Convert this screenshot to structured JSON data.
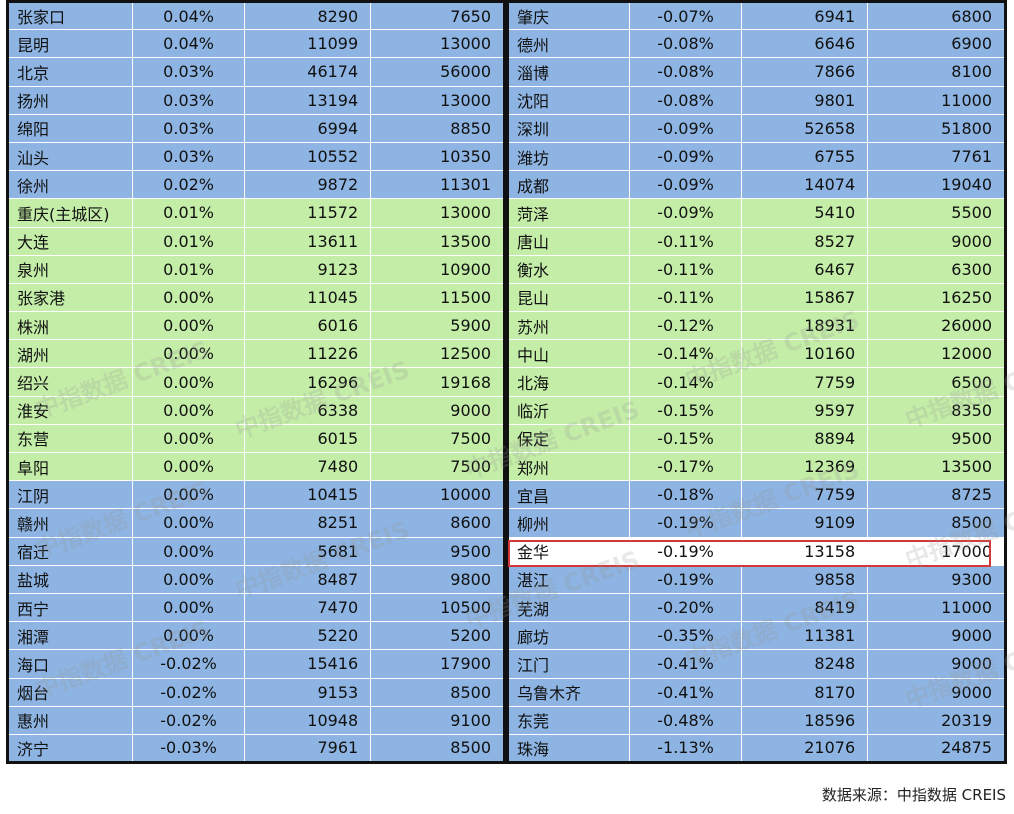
{
  "colors": {
    "blue_row": "#8db4e2",
    "green_row": "#c4eea8",
    "highlight_border": "#d23a3a"
  },
  "left_rows": [
    {
      "city": "张家口",
      "change": "0.04%",
      "value_a": "8290",
      "value_b": "7650",
      "color": "blue"
    },
    {
      "city": "昆明",
      "change": "0.04%",
      "value_a": "11099",
      "value_b": "13000",
      "color": "blue"
    },
    {
      "city": "北京",
      "change": "0.03%",
      "value_a": "46174",
      "value_b": "56000",
      "color": "blue"
    },
    {
      "city": "扬州",
      "change": "0.03%",
      "value_a": "13194",
      "value_b": "13000",
      "color": "blue"
    },
    {
      "city": "绵阳",
      "change": "0.03%",
      "value_a": "6994",
      "value_b": "8850",
      "color": "blue"
    },
    {
      "city": "汕头",
      "change": "0.03%",
      "value_a": "10552",
      "value_b": "10350",
      "color": "blue"
    },
    {
      "city": "徐州",
      "change": "0.02%",
      "value_a": "9872",
      "value_b": "11301",
      "color": "blue"
    },
    {
      "city": "重庆(主城区)",
      "change": "0.01%",
      "value_a": "11572",
      "value_b": "13000",
      "color": "green"
    },
    {
      "city": "大连",
      "change": "0.01%",
      "value_a": "13611",
      "value_b": "13500",
      "color": "green"
    },
    {
      "city": "泉州",
      "change": "0.01%",
      "value_a": "9123",
      "value_b": "10900",
      "color": "green"
    },
    {
      "city": "张家港",
      "change": "0.00%",
      "value_a": "11045",
      "value_b": "11500",
      "color": "green"
    },
    {
      "city": "株洲",
      "change": "0.00%",
      "value_a": "6016",
      "value_b": "5900",
      "color": "green"
    },
    {
      "city": "湖州",
      "change": "0.00%",
      "value_a": "11226",
      "value_b": "12500",
      "color": "green"
    },
    {
      "city": "绍兴",
      "change": "0.00%",
      "value_a": "16296",
      "value_b": "19168",
      "color": "green"
    },
    {
      "city": "淮安",
      "change": "0.00%",
      "value_a": "6338",
      "value_b": "9000",
      "color": "green"
    },
    {
      "city": "东营",
      "change": "0.00%",
      "value_a": "6015",
      "value_b": "7500",
      "color": "green"
    },
    {
      "city": "阜阳",
      "change": "0.00%",
      "value_a": "7480",
      "value_b": "7500",
      "color": "green"
    },
    {
      "city": "江阴",
      "change": "0.00%",
      "value_a": "10415",
      "value_b": "10000",
      "color": "blue"
    },
    {
      "city": "赣州",
      "change": "0.00%",
      "value_a": "8251",
      "value_b": "8600",
      "color": "blue"
    },
    {
      "city": "宿迁",
      "change": "0.00%",
      "value_a": "5681",
      "value_b": "9500",
      "color": "blue"
    },
    {
      "city": "盐城",
      "change": "0.00%",
      "value_a": "8487",
      "value_b": "9800",
      "color": "blue"
    },
    {
      "city": "西宁",
      "change": "0.00%",
      "value_a": "7470",
      "value_b": "10500",
      "color": "blue"
    },
    {
      "city": "湘潭",
      "change": "0.00%",
      "value_a": "5220",
      "value_b": "5200",
      "color": "blue"
    },
    {
      "city": "海口",
      "change": "-0.02%",
      "value_a": "15416",
      "value_b": "17900",
      "color": "blue"
    },
    {
      "city": "烟台",
      "change": "-0.02%",
      "value_a": "9153",
      "value_b": "8500",
      "color": "blue"
    },
    {
      "city": "惠州",
      "change": "-0.02%",
      "value_a": "10948",
      "value_b": "9100",
      "color": "blue"
    },
    {
      "city": "济宁",
      "change": "-0.03%",
      "value_a": "7961",
      "value_b": "8500",
      "color": "blue"
    }
  ],
  "right_rows": [
    {
      "city": "肇庆",
      "change": "-0.07%",
      "value_a": "6941",
      "value_b": "6800",
      "color": "blue"
    },
    {
      "city": "德州",
      "change": "-0.08%",
      "value_a": "6646",
      "value_b": "6900",
      "color": "blue"
    },
    {
      "city": "淄博",
      "change": "-0.08%",
      "value_a": "7866",
      "value_b": "8100",
      "color": "blue"
    },
    {
      "city": "沈阳",
      "change": "-0.08%",
      "value_a": "9801",
      "value_b": "11000",
      "color": "blue"
    },
    {
      "city": "深圳",
      "change": "-0.09%",
      "value_a": "52658",
      "value_b": "51800",
      "color": "blue"
    },
    {
      "city": "潍坊",
      "change": "-0.09%",
      "value_a": "6755",
      "value_b": "7761",
      "color": "blue"
    },
    {
      "city": "成都",
      "change": "-0.09%",
      "value_a": "14074",
      "value_b": "19040",
      "color": "blue"
    },
    {
      "city": "菏泽",
      "change": "-0.09%",
      "value_a": "5410",
      "value_b": "5500",
      "color": "green"
    },
    {
      "city": "唐山",
      "change": "-0.11%",
      "value_a": "8527",
      "value_b": "9000",
      "color": "green"
    },
    {
      "city": "衡水",
      "change": "-0.11%",
      "value_a": "6467",
      "value_b": "6300",
      "color": "green"
    },
    {
      "city": "昆山",
      "change": "-0.11%",
      "value_a": "15867",
      "value_b": "16250",
      "color": "green"
    },
    {
      "city": "苏州",
      "change": "-0.12%",
      "value_a": "18931",
      "value_b": "26000",
      "color": "green"
    },
    {
      "city": "中山",
      "change": "-0.14%",
      "value_a": "10160",
      "value_b": "12000",
      "color": "green"
    },
    {
      "city": "北海",
      "change": "-0.14%",
      "value_a": "7759",
      "value_b": "6500",
      "color": "green"
    },
    {
      "city": "临沂",
      "change": "-0.15%",
      "value_a": "9597",
      "value_b": "8350",
      "color": "green"
    },
    {
      "city": "保定",
      "change": "-0.15%",
      "value_a": "8894",
      "value_b": "9500",
      "color": "green"
    },
    {
      "city": "郑州",
      "change": "-0.17%",
      "value_a": "12369",
      "value_b": "13500",
      "color": "green"
    },
    {
      "city": "宜昌",
      "change": "-0.18%",
      "value_a": "7759",
      "value_b": "8725",
      "color": "blue"
    },
    {
      "city": "柳州",
      "change": "-0.19%",
      "value_a": "9109",
      "value_b": "8500",
      "color": "blue"
    },
    {
      "city": "金华",
      "change": "-0.19%",
      "value_a": "13158",
      "value_b": "17000",
      "color": "white",
      "highlighted": true
    },
    {
      "city": "湛江",
      "change": "-0.19%",
      "value_a": "9858",
      "value_b": "9300",
      "color": "blue"
    },
    {
      "city": "芜湖",
      "change": "-0.20%",
      "value_a": "8419",
      "value_b": "11000",
      "color": "blue"
    },
    {
      "city": "廊坊",
      "change": "-0.35%",
      "value_a": "11381",
      "value_b": "9000",
      "color": "blue"
    },
    {
      "city": "江门",
      "change": "-0.41%",
      "value_a": "8248",
      "value_b": "9000",
      "color": "blue"
    },
    {
      "city": "乌鲁木齐",
      "change": "-0.41%",
      "value_a": "8170",
      "value_b": "9000",
      "color": "blue"
    },
    {
      "city": "东莞",
      "change": "-0.48%",
      "value_a": "18596",
      "value_b": "20319",
      "color": "blue"
    },
    {
      "city": "珠海",
      "change": "-1.13%",
      "value_a": "21076",
      "value_b": "24875",
      "color": "blue"
    }
  ],
  "watermark_text": "中指数据 CREIS",
  "source_text": "数据来源：中指数据 CREIS"
}
